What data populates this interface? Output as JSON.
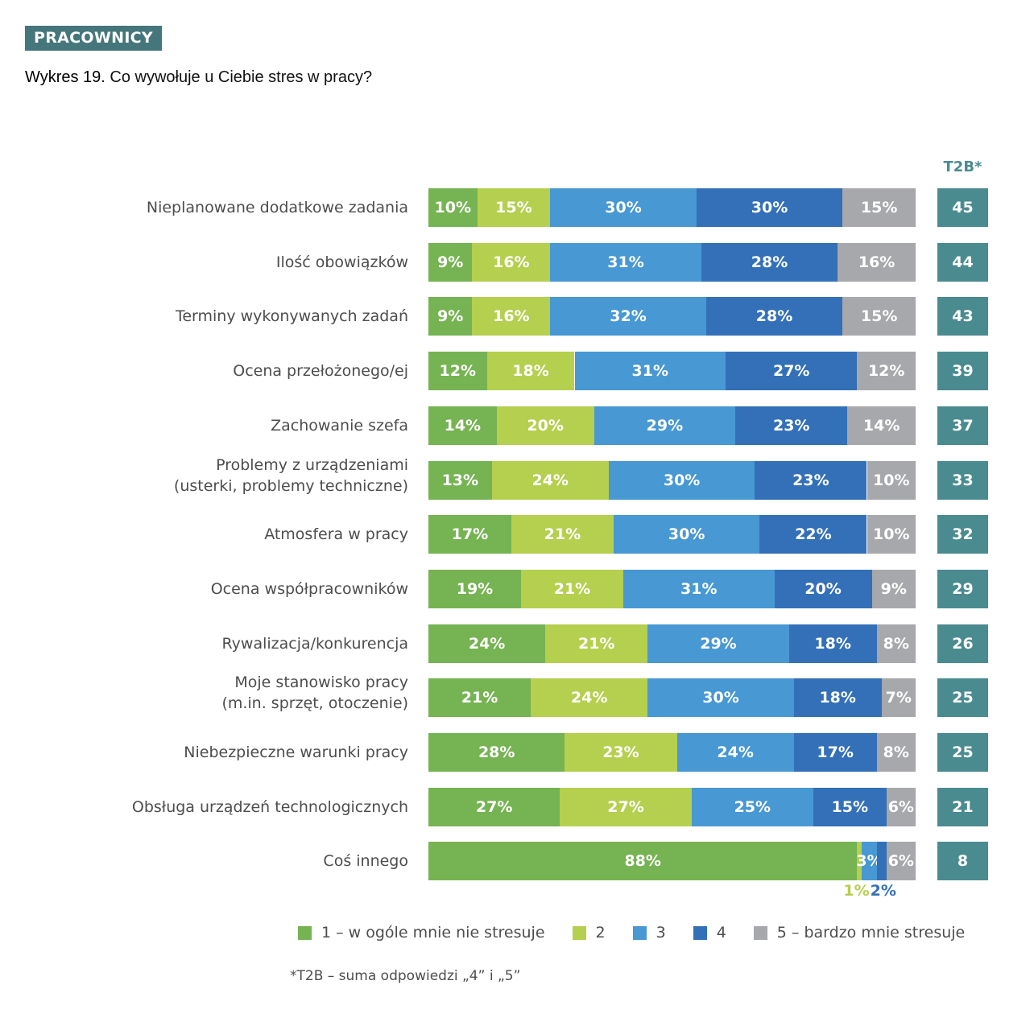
{
  "header": {
    "badge": "PRACOWNICY",
    "title_prefix": "Wykres 19.",
    "title_text": "Co wywołuje u Ciebie stres w pracy?"
  },
  "chart_data": {
    "type": "bar",
    "orientation": "horizontal",
    "stacked": true,
    "title": "Wykres 19. Co wywołuje u Ciebie stres w pracy?",
    "xlabel": "",
    "ylabel": "",
    "categories": [
      "Nieplanowane dodatkowe zadania",
      "Ilość obowiązków",
      "Terminy wykonywanych zadań",
      "Ocena przełożonego/ej",
      "Zachowanie szefa",
      "Problemy z urządzeniami\n(usterki, problemy techniczne)",
      "Atmosfera w pracy",
      "Ocena współpracowników",
      "Rywalizacja/konkurencja",
      "Moje stanowisko pracy\n(m.in. sprzęt, otoczenie)",
      "Niebezpieczne warunki pracy",
      "Obsługa urządzeń technologicznych",
      "Coś innego"
    ],
    "series": [
      {
        "name": "1 – w ogóle mnie nie stresuje",
        "color": "#76b352",
        "values": [
          10,
          9,
          9,
          12,
          14,
          13,
          17,
          19,
          24,
          21,
          28,
          27,
          88
        ]
      },
      {
        "name": "2",
        "color": "#b5cf4e",
        "values": [
          15,
          16,
          16,
          18,
          20,
          24,
          21,
          21,
          21,
          24,
          23,
          27,
          1
        ]
      },
      {
        "name": "3",
        "color": "#4798d3",
        "values": [
          30,
          31,
          32,
          31,
          29,
          30,
          30,
          31,
          29,
          30,
          24,
          25,
          3
        ]
      },
      {
        "name": "4",
        "color": "#3370b8",
        "values": [
          30,
          28,
          28,
          27,
          23,
          23,
          22,
          20,
          18,
          18,
          17,
          15,
          2
        ]
      },
      {
        "name": "5 – bardzo mnie stresuje",
        "color": "#a7a8ab",
        "values": [
          15,
          16,
          15,
          12,
          14,
          10,
          10,
          9,
          8,
          7,
          8,
          6,
          6
        ]
      }
    ],
    "value_suffix": "%",
    "t2b": {
      "header": "T2B*",
      "values": [
        45,
        44,
        43,
        39,
        37,
        33,
        32,
        29,
        26,
        25,
        25,
        21,
        8
      ]
    },
    "external_labels": [
      {
        "row": 12,
        "series": 1,
        "text": "1%"
      },
      {
        "row": 12,
        "series": 3,
        "text": "2%"
      }
    ],
    "xlim": [
      0,
      100
    ],
    "grid": false,
    "legend_position": "bottom",
    "footnote": "*T2B – suma odpowiedzi „4” i „5”"
  }
}
